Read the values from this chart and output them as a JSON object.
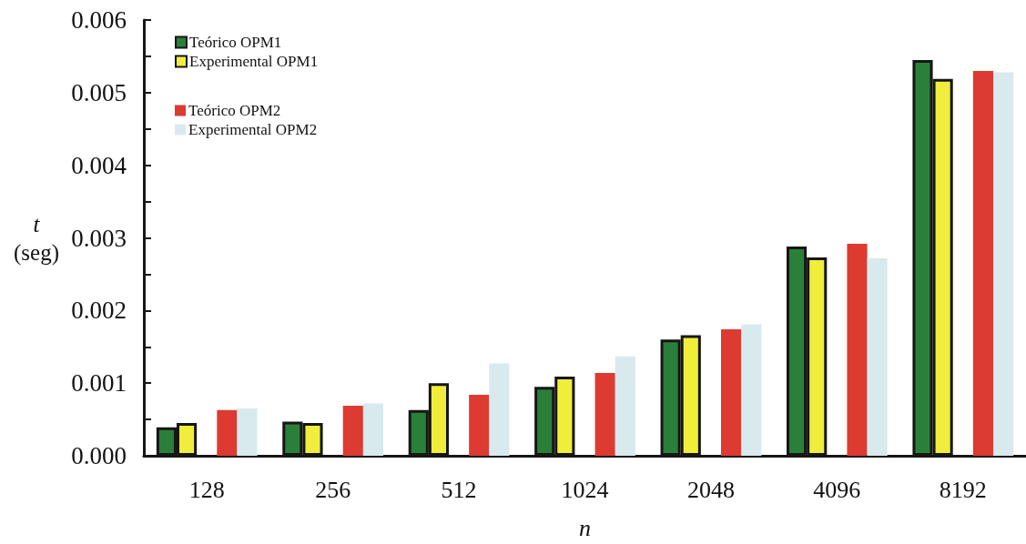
{
  "chart_data": {
    "type": "bar",
    "categories": [
      "128",
      "256",
      "512",
      "1024",
      "2048",
      "4096",
      "8192"
    ],
    "series": [
      {
        "name": "Teórico OPM1",
        "color": "#2a7f39",
        "values": [
          0.00039,
          0.00047,
          0.00063,
          0.00095,
          0.0016,
          0.00288,
          0.00545
        ]
      },
      {
        "name": "Experimental OPM1",
        "color": "#f0ee3a",
        "values": [
          0.00045,
          0.00045,
          0.001,
          0.00109,
          0.00166,
          0.00273,
          0.00519
        ]
      },
      {
        "name": "Teórico OPM2",
        "color": "#dd3a31",
        "values": [
          0.00063,
          0.00069,
          0.00084,
          0.00114,
          0.00174,
          0.00292,
          0.0053
        ]
      },
      {
        "name": "Experimental OPM2",
        "color": "#d9eaee",
        "values": [
          0.00065,
          0.00072,
          0.00127,
          0.00137,
          0.00181,
          0.00272,
          0.00528
        ]
      }
    ],
    "xlabel": "n",
    "ylabel": "t (seg)",
    "ylim": [
      0,
      0.006
    ],
    "yticks": [
      {
        "value": 0,
        "label": "0.000"
      },
      {
        "value": 0.0005,
        "label": null
      },
      0.001,
      {
        "value": 0.0015,
        "label": null
      },
      0.002,
      {
        "value": 0.0025,
        "label": null
      },
      0.003,
      {
        "value": 0.0035,
        "label": null
      },
      0.004,
      {
        "value": 0.0045,
        "label": null
      },
      0.005,
      {
        "value": 0.0055,
        "label": null
      },
      0.006
    ],
    "legend": "top left"
  }
}
